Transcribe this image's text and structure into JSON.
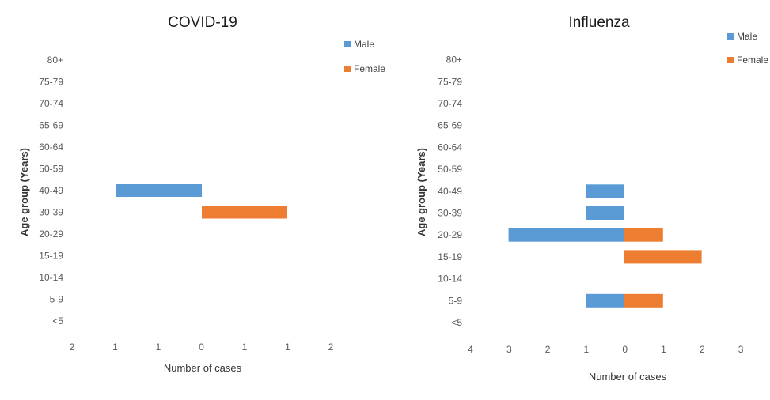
{
  "chart_data": [
    {
      "type": "bar",
      "orientation": "horizontal",
      "title": "COVID-19",
      "xlabel": "Number of cases",
      "ylabel": "Age group (Years)",
      "categories": [
        "<5",
        "5-9",
        "10-14",
        "15-19",
        "20-29",
        "30-39",
        "40-49",
        "50-59",
        "60-64",
        "65-69",
        "70-74",
        "75-79",
        "80+"
      ],
      "x_tick_labels": [
        "2",
        "1",
        "1",
        "0",
        "1",
        "1",
        "2"
      ],
      "series": [
        {
          "name": "Male",
          "color": "#5b9bd5",
          "direction": "left",
          "values": [
            0,
            0,
            0,
            0,
            0,
            0,
            1,
            0,
            0,
            0,
            0,
            0,
            0
          ]
        },
        {
          "name": "Female",
          "color": "#ed7d31",
          "direction": "right",
          "values": [
            0,
            0,
            0,
            0,
            0,
            1,
            0,
            0,
            0,
            0,
            0,
            0,
            0
          ]
        }
      ],
      "legend": "top-right",
      "grid": false
    },
    {
      "type": "bar",
      "orientation": "horizontal",
      "title": "Influenza",
      "xlabel": "Number of cases",
      "ylabel": "Age group (Years)",
      "categories": [
        "<5",
        "5-9",
        "10-14",
        "15-19",
        "20-29",
        "30-39",
        "40-49",
        "50-59",
        "60-64",
        "65-69",
        "70-74",
        "75-79",
        "80+"
      ],
      "x_tick_labels": [
        "4",
        "3",
        "2",
        "1",
        "0",
        "1",
        "2",
        "3"
      ],
      "series": [
        {
          "name": "Male",
          "color": "#5b9bd5",
          "direction": "left",
          "values": [
            0,
            1,
            0,
            0,
            3,
            1,
            1,
            0,
            0,
            0,
            0,
            0,
            0
          ]
        },
        {
          "name": "Female",
          "color": "#ed7d31",
          "direction": "right",
          "values": [
            0,
            1,
            0,
            2,
            1,
            0,
            0,
            0,
            0,
            0,
            0,
            0,
            0
          ]
        }
      ],
      "legend": "top-right",
      "grid": false
    }
  ]
}
